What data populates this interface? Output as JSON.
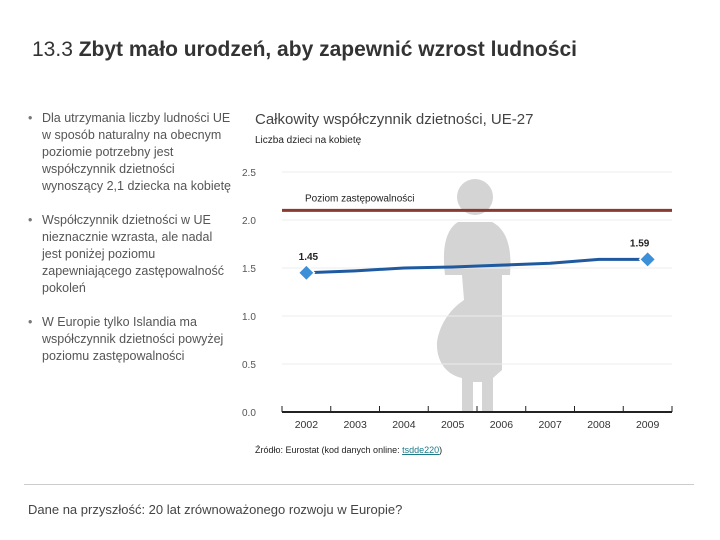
{
  "header": {
    "number": "13.3",
    "title": "Zbyt mało urodzeń, aby zapewnić wzrost ludności"
  },
  "bullets": [
    "Dla utrzymania liczby ludności UE w sposób naturalny na obecnym poziomie potrzebny jest współczynnik dzietności wynoszący 2,1 dziecka na kobietę",
    "Współczynnik dzietności w UE nieznacznie wzrasta, ale nadal jest poniżej poziomu zapewniającego zastępowalność pokoleń",
    "W Europie tylko Islandia ma współczynnik dzietności powyżej poziomu zastępowalności"
  ],
  "source": {
    "prefix": "Źródło: Eurostat (kod danych online: ",
    "link": "tsdde220",
    "suffix": ")"
  },
  "footer": "Dane na przyszłość: 20 lat zrównoważonego rozwoju w Europie?",
  "chart_data": {
    "type": "line",
    "title": "Całkowity współczynnik dzietności, UE-27",
    "ylabel": "Liczba dzieci na kobietę",
    "categories": [
      "2002",
      "2003",
      "2004",
      "2005",
      "2006",
      "2007",
      "2008",
      "2009"
    ],
    "series": [
      {
        "name": "UE-27",
        "values": [
          1.45,
          1.47,
          1.5,
          1.51,
          1.53,
          1.55,
          1.59,
          1.59
        ]
      },
      {
        "name": "Poziom zastępowalności",
        "values": [
          2.1,
          2.1,
          2.1,
          2.1,
          2.1,
          2.1,
          2.1,
          2.1
        ]
      }
    ],
    "yticks": [
      0.0,
      0.5,
      1.0,
      1.5,
      2.0,
      2.5
    ],
    "ytick_labels": [
      "0.0",
      "0.5",
      "1.0",
      "1.5",
      "2.0",
      "2.5"
    ],
    "ylim": [
      0,
      2.5
    ],
    "annotations": {
      "replacement_label": "Poziom zastępowalności",
      "start_label": "1.45",
      "end_label": "1.59"
    },
    "colors": {
      "fertility": "#1f5aa0",
      "replacement": "#8b3a32",
      "marker": "#3d8fd8",
      "axis": "#222222",
      "grid": "#ececec",
      "figure": "#d4d4d4"
    }
  }
}
